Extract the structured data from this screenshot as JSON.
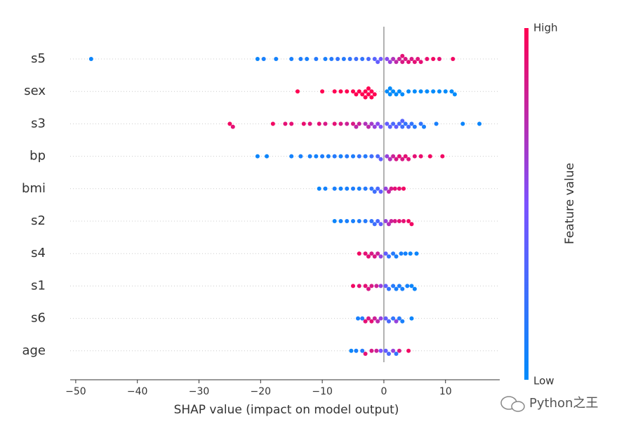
{
  "chart_data": {
    "type": "beeswarm",
    "x_label": "SHAP value (impact on model output)",
    "colorbar_label": "Feature value",
    "colorbar_high": "High",
    "colorbar_low": "Low",
    "watermark": "Python之王",
    "xlim": [
      -50.9,
      18.8
    ],
    "xticks": [
      {
        "value": -50,
        "label": "−50"
      },
      {
        "value": -40,
        "label": "−40"
      },
      {
        "value": -30,
        "label": "−30"
      },
      {
        "value": -20,
        "label": "−20"
      },
      {
        "value": -10,
        "label": "−10"
      },
      0,
      10
    ],
    "colors": [
      "#008bfb",
      "#7c52ff",
      "#ff0052"
    ],
    "grid": true,
    "rows": [
      {
        "feature": "s5",
        "shap": [
          -47.5,
          -20.5,
          -19.5,
          -17.5,
          -15,
          -13.5,
          -12.5,
          -11,
          -9.5,
          -8.5,
          -7.5,
          -6.5,
          -5.5,
          -4.5,
          -3.5,
          -2.5,
          -1.5,
          -1,
          -0.5,
          0.5,
          1,
          1.5,
          2,
          2.5,
          3,
          3,
          3.5,
          4,
          4.5,
          5,
          5.5,
          6,
          7,
          8,
          9,
          11.2
        ],
        "feature_value": [
          0.05,
          0.05,
          0.1,
          0.08,
          0.1,
          0.12,
          0.1,
          0.15,
          0.1,
          0.15,
          0.2,
          0.15,
          0.2,
          0.25,
          0.2,
          0.3,
          0.35,
          0.4,
          0.45,
          0.55,
          0.6,
          0.7,
          0.75,
          0.8,
          0.85,
          0.9,
          0.85,
          0.9,
          0.85,
          0.9,
          0.88,
          0.9,
          0.92,
          0.95,
          0.9,
          0.95
        ]
      },
      {
        "feature": "sex",
        "shap": [
          -14,
          -10,
          -8,
          -7,
          -6,
          -5,
          -4.5,
          -4,
          -3.5,
          -3,
          -3,
          -2.5,
          -2.5,
          -2,
          -2,
          -1.5,
          0.5,
          1,
          1,
          1.5,
          2,
          2.5,
          3,
          4,
          5,
          6,
          7,
          8,
          9,
          10,
          11,
          11.5
        ],
        "feature_value": [
          1,
          1,
          1,
          1,
          1,
          1,
          1,
          1,
          1,
          1,
          1,
          1,
          1,
          1,
          1,
          1,
          0,
          0,
          0,
          0,
          0,
          0,
          0,
          0,
          0,
          0,
          0,
          0,
          0,
          0,
          0,
          0
        ]
      },
      {
        "feature": "s3",
        "shap": [
          -25,
          -24.5,
          -18,
          -16,
          -15,
          -13,
          -12,
          -10.5,
          -9.5,
          -8,
          -7,
          -6,
          -5,
          -4.5,
          -4,
          -3,
          -2.5,
          -2,
          -1.5,
          -1,
          -0.5,
          0.5,
          1,
          1.5,
          2,
          2.5,
          3,
          3,
          3.5,
          4,
          4.5,
          5,
          6,
          6.5,
          8.5,
          12.8,
          15.5
        ],
        "feature_value": [
          0.95,
          0.9,
          0.95,
          0.9,
          0.9,
          0.92,
          0.88,
          0.9,
          0.85,
          0.9,
          0.85,
          0.8,
          0.85,
          0.75,
          0.8,
          0.7,
          0.75,
          0.65,
          0.6,
          0.55,
          0.5,
          0.4,
          0.35,
          0.3,
          0.4,
          0.3,
          0.25,
          0.35,
          0.2,
          0.3,
          0.2,
          0.15,
          0.2,
          0.1,
          0.1,
          0.05,
          0.05
        ]
      },
      {
        "feature": "bp",
        "shap": [
          -20.5,
          -19,
          -15,
          -13.5,
          -12,
          -11,
          -10,
          -9,
          -8,
          -7,
          -6,
          -5,
          -4,
          -3,
          -2,
          -1,
          -0.5,
          0.5,
          1,
          1.5,
          2,
          2.5,
          3,
          3.5,
          4,
          5,
          6,
          7.5,
          9.5
        ],
        "feature_value": [
          0.05,
          0.05,
          0.08,
          0.1,
          0.1,
          0.08,
          0.12,
          0.1,
          0.15,
          0.1,
          0.15,
          0.12,
          0.2,
          0.15,
          0.25,
          0.3,
          0.4,
          0.6,
          0.7,
          0.8,
          0.85,
          0.9,
          0.85,
          0.9,
          0.88,
          0.9,
          0.92,
          0.95,
          0.95
        ]
      },
      {
        "feature": "bmi",
        "shap": [
          -10.5,
          -9.5,
          -8,
          -7,
          -6,
          -5,
          -4,
          -3,
          -2,
          -1.5,
          -1,
          -0.5,
          0.3,
          0.8,
          1.2,
          1.8,
          2.5,
          3.2
        ],
        "feature_value": [
          0.05,
          0.08,
          0.1,
          0.08,
          0.1,
          0.12,
          0.1,
          0.15,
          0.2,
          0.25,
          0.3,
          0.4,
          0.6,
          0.75,
          0.85,
          0.9,
          0.9,
          0.95
        ]
      },
      {
        "feature": "s2",
        "shap": [
          -8,
          -7,
          -6,
          -5,
          -4,
          -3,
          -2,
          -1.5,
          -1,
          -0.5,
          0.3,
          0.8,
          1.2,
          1.8,
          2.5,
          3.2,
          4,
          4.5
        ],
        "feature_value": [
          0.05,
          0.08,
          0.1,
          0.1,
          0.12,
          0.15,
          0.2,
          0.25,
          0.3,
          0.4,
          0.6,
          0.7,
          0.8,
          0.85,
          0.9,
          0.9,
          0.95,
          0.95
        ]
      },
      {
        "feature": "s4",
        "shap": [
          -4,
          -3,
          -2.5,
          -2,
          -1.5,
          -1,
          -0.5,
          0.3,
          0.8,
          1.5,
          2,
          2.8,
          3.5,
          4.3,
          5.3
        ],
        "feature_value": [
          0.95,
          0.9,
          0.9,
          0.85,
          0.85,
          0.8,
          0.6,
          0.4,
          0.2,
          0.15,
          0.1,
          0.1,
          0.08,
          0.05,
          0.05
        ]
      },
      {
        "feature": "s1",
        "shap": [
          -5,
          -4,
          -3,
          -2.5,
          -2,
          -1.2,
          -0.5,
          0.3,
          0.8,
          1.5,
          2,
          2.5,
          3,
          3.8,
          4.5,
          5
        ],
        "feature_value": [
          0.95,
          0.9,
          0.9,
          0.85,
          0.85,
          0.8,
          0.6,
          0.4,
          0.2,
          0.15,
          0.1,
          0.12,
          0.1,
          0.08,
          0.05,
          0.05
        ]
      },
      {
        "feature": "s6",
        "shap": [
          -4.2,
          -3.5,
          -3,
          -2.5,
          -2,
          -1.5,
          -1,
          -0.5,
          0.3,
          0.8,
          1.5,
          2,
          2.5,
          3,
          4.5
        ],
        "feature_value": [
          0.1,
          0.15,
          0.9,
          0.85,
          0.9,
          0.8,
          0.75,
          0.6,
          0.4,
          0.3,
          0.2,
          0.6,
          0.15,
          0.1,
          0.05
        ]
      },
      {
        "feature": "age",
        "shap": [
          -5.3,
          -4.5,
          -3.5,
          -3,
          -2,
          -1.2,
          -0.5,
          0.3,
          0.8,
          1.5,
          2,
          2.5,
          4
        ],
        "feature_value": [
          0.05,
          0.1,
          0.15,
          0.9,
          0.85,
          0.8,
          0.5,
          0.4,
          0.3,
          0.6,
          0.2,
          0.85,
          0.95
        ]
      }
    ]
  }
}
